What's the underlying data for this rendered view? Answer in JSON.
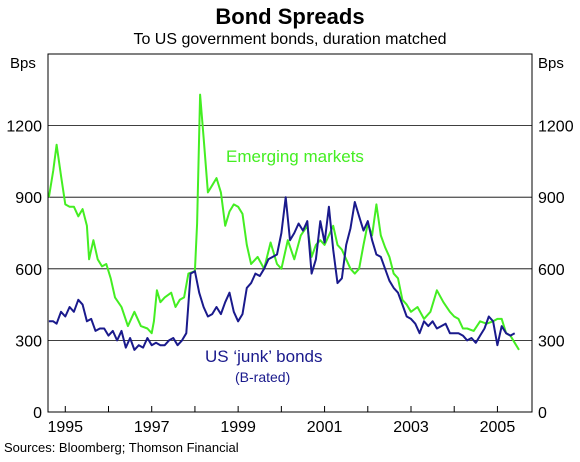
{
  "chart_data": {
    "type": "line",
    "title": "Bond Spreads",
    "subtitle": "To US government bonds, duration matched",
    "ylabel_left": "Bps",
    "ylabel_right": "Bps",
    "ylim": [
      0,
      1500
    ],
    "yticks": [
      0,
      300,
      600,
      900,
      1200
    ],
    "xlim": [
      1994.6,
      2005.8
    ],
    "xticks": [
      1995,
      1997,
      1999,
      2001,
      2003,
      2005
    ],
    "grid": true,
    "series": [
      {
        "name": "Emerging markets",
        "color": "#44ee22",
        "x": [
          1994.62,
          1994.72,
          1994.8,
          1994.9,
          1995.0,
          1995.1,
          1995.2,
          1995.3,
          1995.4,
          1995.5,
          1995.55,
          1995.65,
          1995.75,
          1995.85,
          1995.95,
          1996.05,
          1996.15,
          1996.3,
          1996.45,
          1996.6,
          1996.75,
          1996.9,
          1997.0,
          1997.05,
          1997.12,
          1997.2,
          1997.3,
          1997.45,
          1997.55,
          1997.65,
          1997.75,
          1997.85,
          1998.0,
          1998.05,
          1998.12,
          1998.2,
          1998.3,
          1998.4,
          1998.5,
          1998.6,
          1998.7,
          1998.8,
          1998.9,
          1999.0,
          1999.1,
          1999.2,
          1999.3,
          1999.45,
          1999.6,
          1999.75,
          1999.9,
          2000.0,
          2000.15,
          2000.3,
          2000.45,
          2000.6,
          2000.7,
          2000.8,
          2000.9,
          2001.0,
          2001.1,
          2001.2,
          2001.3,
          2001.4,
          2001.5,
          2001.6,
          2001.7,
          2001.8,
          2001.9,
          2002.0,
          2002.1,
          2002.2,
          2002.3,
          2002.4,
          2002.5,
          2002.6,
          2002.7,
          2002.8,
          2002.9,
          2003.0,
          2003.15,
          2003.3,
          2003.45,
          2003.6,
          2003.75,
          2003.9,
          2004.0,
          2004.1,
          2004.2,
          2004.3,
          2004.45,
          2004.6,
          2004.75,
          2004.9,
          2005.0,
          2005.1,
          2005.2,
          2005.3,
          2005.4,
          2005.5
        ],
        "y": [
          900,
          1010,
          1120,
          990,
          870,
          860,
          860,
          820,
          850,
          780,
          640,
          720,
          640,
          610,
          620,
          560,
          480,
          440,
          360,
          420,
          360,
          350,
          330,
          380,
          510,
          460,
          480,
          500,
          440,
          470,
          480,
          580,
          590,
          790,
          1330,
          1150,
          920,
          950,
          980,
          920,
          780,
          840,
          870,
          860,
          830,
          700,
          620,
          650,
          600,
          710,
          620,
          600,
          720,
          640,
          740,
          780,
          650,
          700,
          720,
          700,
          740,
          780,
          700,
          680,
          640,
          600,
          580,
          600,
          700,
          790,
          740,
          870,
          740,
          690,
          650,
          580,
          560,
          470,
          450,
          420,
          440,
          390,
          420,
          510,
          460,
          420,
          400,
          390,
          350,
          350,
          340,
          380,
          370,
          380,
          390,
          390,
          330,
          320,
          290,
          260
        ]
      },
      {
        "name": "US ‘junk’ bonds",
        "color": "#1a1a8c",
        "x": [
          1994.62,
          1994.72,
          1994.8,
          1994.9,
          1995.0,
          1995.1,
          1995.2,
          1995.3,
          1995.4,
          1995.5,
          1995.6,
          1995.7,
          1995.8,
          1995.9,
          1996.0,
          1996.1,
          1996.2,
          1996.3,
          1996.4,
          1996.5,
          1996.6,
          1996.7,
          1996.8,
          1996.9,
          1997.0,
          1997.1,
          1997.2,
          1997.3,
          1997.4,
          1997.5,
          1997.6,
          1997.7,
          1997.8,
          1997.9,
          1998.0,
          1998.1,
          1998.2,
          1998.3,
          1998.4,
          1998.5,
          1998.6,
          1998.7,
          1998.8,
          1998.9,
          1999.0,
          1999.1,
          1999.2,
          1999.3,
          1999.4,
          1999.5,
          1999.6,
          1999.7,
          1999.8,
          1999.9,
          2000.0,
          2000.1,
          2000.2,
          2000.3,
          2000.4,
          2000.5,
          2000.6,
          2000.7,
          2000.8,
          2000.9,
          2001.0,
          2001.1,
          2001.2,
          2001.3,
          2001.4,
          2001.5,
          2001.6,
          2001.7,
          2001.8,
          2001.9,
          2002.0,
          2002.1,
          2002.2,
          2002.3,
          2002.4,
          2002.5,
          2002.6,
          2002.7,
          2002.8,
          2002.9,
          2003.0,
          2003.1,
          2003.2,
          2003.3,
          2003.4,
          2003.5,
          2003.6,
          2003.7,
          2003.8,
          2003.9,
          2004.0,
          2004.1,
          2004.2,
          2004.3,
          2004.4,
          2004.5,
          2004.6,
          2004.7,
          2004.8,
          2004.9,
          2005.0,
          2005.1,
          2005.2,
          2005.3,
          2005.4
        ],
        "y": [
          380,
          380,
          370,
          420,
          400,
          440,
          420,
          470,
          450,
          380,
          390,
          340,
          350,
          350,
          320,
          340,
          300,
          340,
          270,
          310,
          260,
          280,
          270,
          310,
          280,
          290,
          280,
          280,
          300,
          310,
          280,
          300,
          330,
          580,
          590,
          500,
          440,
          400,
          410,
          440,
          410,
          460,
          500,
          420,
          380,
          410,
          520,
          540,
          580,
          570,
          600,
          640,
          650,
          660,
          750,
          900,
          720,
          750,
          790,
          760,
          800,
          580,
          640,
          800,
          710,
          860,
          680,
          540,
          560,
          700,
          770,
          880,
          820,
          760,
          800,
          720,
          660,
          650,
          600,
          550,
          520,
          500,
          450,
          400,
          390,
          370,
          330,
          380,
          360,
          380,
          350,
          360,
          370,
          330,
          330,
          330,
          320,
          300,
          310,
          290,
          320,
          350,
          400,
          380,
          280,
          360,
          330,
          320,
          330
        ]
      }
    ],
    "annotations": [
      {
        "text": "Emerging markets",
        "color": "#44ee22"
      },
      {
        "text": "US ‘junk’ bonds",
        "color": "#1a1a8c"
      },
      {
        "text": "(B-rated)",
        "color": "#1a1a8c"
      }
    ],
    "source": "Sources: Bloomberg; Thomson Financial"
  }
}
